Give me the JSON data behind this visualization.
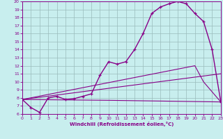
{
  "xlabel": "Windchill (Refroidissement éolien,°C)",
  "xlim": [
    0,
    23
  ],
  "ylim": [
    6,
    20
  ],
  "xticks": [
    0,
    1,
    2,
    3,
    4,
    5,
    6,
    7,
    8,
    9,
    10,
    11,
    12,
    13,
    14,
    15,
    16,
    17,
    18,
    19,
    20,
    21,
    22,
    23
  ],
  "yticks": [
    6,
    7,
    8,
    9,
    10,
    11,
    12,
    13,
    14,
    15,
    16,
    17,
    18,
    19,
    20
  ],
  "background_color": "#c8eeee",
  "line_color": "#880088",
  "grid_color": "#99bbbb",
  "curve1_x": [
    0,
    1,
    2,
    3,
    4,
    5,
    6,
    7,
    8,
    9,
    10,
    11,
    12,
    13,
    14,
    15,
    16,
    17,
    18,
    19,
    20,
    21,
    22,
    23
  ],
  "curve1_y": [
    7.8,
    6.8,
    6.2,
    8.0,
    8.2,
    7.8,
    7.9,
    8.2,
    8.5,
    10.8,
    12.5,
    12.2,
    12.5,
    14.0,
    16.0,
    18.5,
    19.3,
    19.7,
    20.0,
    19.7,
    18.5,
    17.5,
    14.0,
    7.5
  ],
  "curve2_x": [
    0,
    10,
    23
  ],
  "curve2_y": [
    7.8,
    7.7,
    7.5
  ],
  "curve3_x": [
    0,
    20,
    21,
    23
  ],
  "curve3_y": [
    7.8,
    12.0,
    10.0,
    7.5
  ],
  "curve4_x": [
    0,
    23
  ],
  "curve4_y": [
    7.8,
    11.0
  ]
}
